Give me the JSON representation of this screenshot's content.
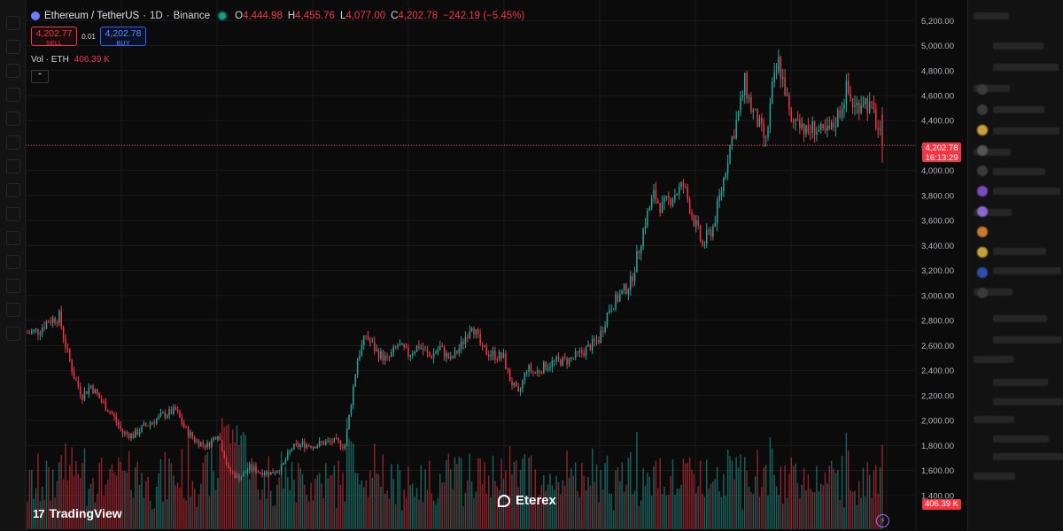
{
  "header": {
    "pair": "Ethereum / TetherUS",
    "interval": "1D",
    "exchange": "Binance",
    "ohlc": {
      "o_label": "O",
      "o": "4,444.98",
      "h_label": "H",
      "h": "4,455.76",
      "l_label": "L",
      "l": "4,077.00",
      "c_label": "C",
      "c": "4,202.78",
      "change": "−242.19 (−5.45%)"
    }
  },
  "trade": {
    "sell_price": "4,202.77",
    "sell_label": "SELL",
    "spread": "0.01",
    "buy_price": "4,202.78",
    "buy_label": "BUY"
  },
  "volume_legend": {
    "label": "Vol · ETH",
    "value": "406.39 K"
  },
  "price_tag": {
    "price": "4,202.78",
    "countdown": "16:13:29"
  },
  "volume_tag": "406.39 K",
  "brands": {
    "tradingview": "TradingView",
    "eterex": "Eterex"
  },
  "colors": {
    "up": "#26a69a",
    "down": "#f23645",
    "background": "#0b0b0b",
    "grid": "#1b1b1b"
  },
  "chart_data": {
    "type": "candlestick",
    "y_axis_ticks": [
      "5,200.00",
      "5,000.00",
      "4,800.00",
      "4,600.00",
      "4,400.00",
      "4,200.00",
      "4,000.00",
      "3,800.00",
      "3,600.00",
      "3,400.00",
      "3,200.00",
      "3,000.00",
      "2,800.00",
      "2,600.00",
      "2,400.00",
      "2,200.00",
      "2,000.00",
      "1,800.00",
      "1,600.00",
      "1,400.00"
    ],
    "ylim": [
      1200,
      5280
    ],
    "current_price": 4202.78,
    "anchors": [
      [
        0,
        2700
      ],
      [
        5,
        2720
      ],
      [
        10,
        2800
      ],
      [
        15,
        2830
      ],
      [
        18,
        2600
      ],
      [
        22,
        2350
      ],
      [
        26,
        2200
      ],
      [
        30,
        2280
      ],
      [
        35,
        2150
      ],
      [
        40,
        2050
      ],
      [
        45,
        1900
      ],
      [
        50,
        1880
      ],
      [
        55,
        1950
      ],
      [
        60,
        2000
      ],
      [
        65,
        2050
      ],
      [
        70,
        2080
      ],
      [
        75,
        1920
      ],
      [
        80,
        1830
      ],
      [
        85,
        1800
      ],
      [
        90,
        1900
      ],
      [
        95,
        1600
      ],
      [
        100,
        1540
      ],
      [
        105,
        1620
      ],
      [
        110,
        1590
      ],
      [
        115,
        1580
      ],
      [
        120,
        1620
      ],
      [
        125,
        1780
      ],
      [
        130,
        1810
      ],
      [
        135,
        1800
      ],
      [
        140,
        1820
      ],
      [
        145,
        1830
      ],
      [
        150,
        1800
      ],
      [
        153,
        2150
      ],
      [
        156,
        2500
      ],
      [
        160,
        2680
      ],
      [
        165,
        2550
      ],
      [
        170,
        2480
      ],
      [
        175,
        2600
      ],
      [
        180,
        2530
      ],
      [
        185,
        2600
      ],
      [
        190,
        2510
      ],
      [
        195,
        2580
      ],
      [
        200,
        2480
      ],
      [
        205,
        2600
      ],
      [
        210,
        2780
      ],
      [
        215,
        2560
      ],
      [
        220,
        2530
      ],
      [
        225,
        2500
      ],
      [
        228,
        2330
      ],
      [
        232,
        2200
      ],
      [
        236,
        2420
      ],
      [
        240,
        2380
      ],
      [
        245,
        2440
      ],
      [
        250,
        2470
      ],
      [
        255,
        2480
      ],
      [
        260,
        2520
      ],
      [
        265,
        2580
      ],
      [
        270,
        2650
      ],
      [
        275,
        2900
      ],
      [
        280,
        3000
      ],
      [
        285,
        3100
      ],
      [
        288,
        3300
      ],
      [
        292,
        3600
      ],
      [
        296,
        3800
      ],
      [
        300,
        3700
      ],
      [
        305,
        3800
      ],
      [
        310,
        3880
      ],
      [
        315,
        3600
      ],
      [
        319,
        3400
      ],
      [
        324,
        3550
      ],
      [
        328,
        3850
      ],
      [
        332,
        4200
      ],
      [
        336,
        4450
      ],
      [
        339,
        4700
      ],
      [
        342,
        4500
      ],
      [
        346,
        4350
      ],
      [
        349,
        4220
      ],
      [
        352,
        4650
      ],
      [
        355,
        4860
      ],
      [
        358,
        4650
      ],
      [
        361,
        4350
      ],
      [
        364,
        4450
      ],
      [
        368,
        4300
      ],
      [
        372,
        4350
      ],
      [
        376,
        4280
      ],
      [
        380,
        4330
      ],
      [
        384,
        4480
      ],
      [
        387,
        4650
      ],
      [
        391,
        4500
      ],
      [
        395,
        4580
      ],
      [
        400,
        4450
      ],
      [
        404,
        4202.78
      ]
    ],
    "volume_ylim": [
      0,
      1
    ]
  }
}
